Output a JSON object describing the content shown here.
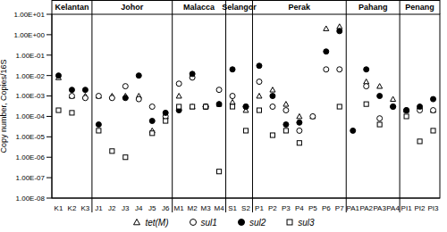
{
  "chart_data": {
    "type": "scatter",
    "y_label": "Copy number, Copies/16S",
    "log": "y",
    "grid": false,
    "legend": "bottom",
    "categories": [
      "K1",
      "K2",
      "K3",
      "J1",
      "J2",
      "J3",
      "J4",
      "J5",
      "J6",
      "M1",
      "M2",
      "M3",
      "M4",
      "S1",
      "S2",
      "P1",
      "P2",
      "P3",
      "P4",
      "P5",
      "P6",
      "P7",
      "PA1",
      "PA2",
      "PA3",
      "PA4",
      "PI1",
      "PI2",
      "PI3"
    ],
    "groups": [
      {
        "label": "Kelantan",
        "members": [
          "K1",
          "K2",
          "K3"
        ]
      },
      {
        "label": "Johor",
        "members": [
          "J1",
          "J2",
          "J3",
          "J4",
          "J5",
          "J6"
        ]
      },
      {
        "label": "Malacca",
        "members": [
          "M1",
          "M2",
          "M3",
          "M4"
        ]
      },
      {
        "label": "Selangor",
        "members": [
          "S1",
          "S2"
        ]
      },
      {
        "label": "Perak",
        "members": [
          "P1",
          "P2",
          "P3",
          "P4",
          "P5",
          "P6",
          "P7"
        ]
      },
      {
        "label": "Pahang",
        "members": [
          "PA1",
          "PA2",
          "PA3",
          "PA4"
        ]
      },
      {
        "label": "Penang",
        "members": [
          "PI1",
          "PI2",
          "PI3"
        ]
      }
    ],
    "ylim": [
      1e-08,
      10
    ],
    "yticks": [
      {
        "value": 1e-08,
        "label": "1.00E-08"
      },
      {
        "value": 1e-07,
        "label": "1.00E-07"
      },
      {
        "value": 1e-06,
        "label": "1.00E-06"
      },
      {
        "value": 1e-05,
        "label": "1.00E-05"
      },
      {
        "value": 0.0001,
        "label": "1.00E-04"
      },
      {
        "value": 0.001,
        "label": "1.00E-03"
      },
      {
        "value": 0.01,
        "label": "1.00E-02"
      },
      {
        "value": 0.1,
        "label": "1.00E-01"
      },
      {
        "value": 1,
        "label": "1.00E+00"
      },
      {
        "value": 10,
        "label": "1.00E+01"
      }
    ],
    "series": [
      {
        "name": "tet(M)",
        "color": "#000000",
        "marker": "triangle",
        "values": [
          0.008,
          0.001,
          0.001,
          0.001,
          0.001,
          0.001,
          0.001,
          2e-05,
          0.0001,
          0.001,
          0.0003,
          0.0003,
          0.0004,
          0.0005,
          0.0002,
          0.001,
          0.002,
          0.0004,
          0.0001,
          0.0001,
          2,
          2.5,
          null,
          0.005,
          0.003,
          0.0007,
          0.0002,
          0.0003,
          0.0002
        ]
      },
      {
        "name": "sul1",
        "color": "#000000",
        "marker": "circle",
        "values": [
          null,
          0.001,
          0.0008,
          0.001,
          0.0008,
          0.003,
          0.0007,
          0.0003,
          0.0001,
          0.004,
          0.008,
          0.0003,
          0.002,
          0.001,
          0.0003,
          0.005,
          0.0003,
          0.0002,
          2e-05,
          0.0001,
          0.02,
          0.02,
          null,
          0.003,
          8e-05,
          0.0003,
          0.0002,
          0.0002,
          0.0002
        ]
      },
      {
        "name": "sul2",
        "color": "#000000",
        "marker": "filled_circle",
        "values": [
          0.01,
          0.002,
          0.002,
          4e-05,
          null,
          0.0008,
          0.01,
          6e-05,
          0.00015,
          0.0002,
          0.012,
          0.0003,
          0.0004,
          0.02,
          0.0003,
          0.03,
          0.001,
          4e-05,
          5e-05,
          null,
          0.15,
          1.5,
          2e-05,
          0.02,
          0.001,
          0.0003,
          0.0002,
          0.0003,
          0.0007
        ]
      },
      {
        "name": "sul3",
        "color": "#000000",
        "marker": "square",
        "values": [
          0.0002,
          0.00015,
          null,
          2e-05,
          2e-06,
          1e-06,
          null,
          1.5e-05,
          6e-05,
          0.0003,
          0.0003,
          0.0003,
          2e-07,
          0.0003,
          2e-05,
          0.0002,
          1.2e-05,
          2e-05,
          5e-06,
          null,
          null,
          0.0003,
          null,
          0.0004,
          4e-05,
          null,
          0.0001,
          6e-06,
          2e-05
        ]
      }
    ]
  }
}
